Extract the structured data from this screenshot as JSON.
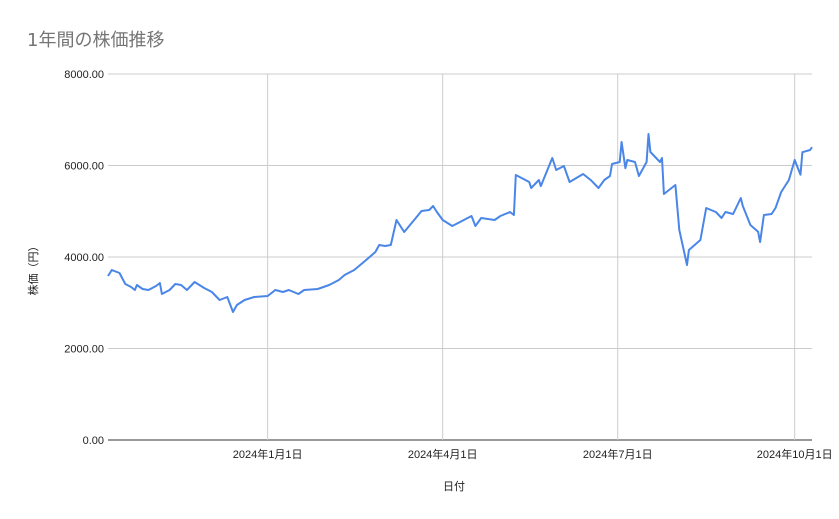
{
  "chart_data": {
    "type": "line",
    "title": "1年間の株価推移",
    "xlabel": "日付",
    "ylabel": "株価（円）",
    "ylim": [
      0,
      8000
    ],
    "xlim": [
      "2023-10-10",
      "2024-10-10"
    ],
    "yticks": [
      "0.00",
      "2000.00",
      "4000.00",
      "6000.00",
      "8000.00"
    ],
    "xticks": [
      {
        "date": "2024-01-01",
        "label": "2024年1月1日"
      },
      {
        "date": "2024-04-01",
        "label": "2024年4月1日"
      },
      {
        "date": "2024-07-01",
        "label": "2024年7月1日"
      },
      {
        "date": "2024-10-01",
        "label": "2024年10月1日"
      }
    ],
    "grid": true,
    "line_color": "#4a86e8",
    "x": [
      "2023-10-10",
      "2023-10-12",
      "2023-10-16",
      "2023-10-19",
      "2023-10-22",
      "2023-10-24",
      "2023-10-25",
      "2023-10-28",
      "2023-10-31",
      "2023-11-04",
      "2023-11-06",
      "2023-11-07",
      "2023-11-11",
      "2023-11-14",
      "2023-11-17",
      "2023-11-20",
      "2023-11-24",
      "2023-11-29",
      "2023-12-03",
      "2023-12-07",
      "2023-12-11",
      "2023-12-14",
      "2023-12-16",
      "2023-12-20",
      "2023-12-25",
      "2024-01-01",
      "2024-01-05",
      "2024-01-09",
      "2024-01-12",
      "2024-01-17",
      "2024-01-20",
      "2024-01-27",
      "2024-02-02",
      "2024-02-07",
      "2024-02-10",
      "2024-02-15",
      "2024-02-20",
      "2024-02-26",
      "2024-02-28",
      "2024-03-02",
      "2024-03-05",
      "2024-03-08",
      "2024-03-12",
      "2024-03-18",
      "2024-03-21",
      "2024-03-25",
      "2024-03-27",
      "2024-03-29",
      "2024-04-01",
      "2024-04-06",
      "2024-04-10",
      "2024-04-16",
      "2024-04-18",
      "2024-04-21",
      "2024-04-28",
      "2024-05-01",
      "2024-05-06",
      "2024-05-08",
      "2024-05-09",
      "2024-05-16",
      "2024-05-17",
      "2024-05-21",
      "2024-05-22",
      "2024-05-28",
      "2024-05-30",
      "2024-06-03",
      "2024-06-06",
      "2024-06-13",
      "2024-06-17",
      "2024-06-21",
      "2024-06-24",
      "2024-06-27",
      "2024-06-28",
      "2024-07-02",
      "2024-07-03",
      "2024-07-05",
      "2024-07-06",
      "2024-07-10",
      "2024-07-12",
      "2024-07-16",
      "2024-07-17",
      "2024-07-18",
      "2024-07-23",
      "2024-07-24",
      "2024-07-25",
      "2024-07-31",
      "2024-08-02",
      "2024-08-06",
      "2024-08-07",
      "2024-08-13",
      "2024-08-16",
      "2024-08-21",
      "2024-08-24",
      "2024-08-26",
      "2024-08-30",
      "2024-09-03",
      "2024-09-04",
      "2024-09-08",
      "2024-09-12",
      "2024-09-13",
      "2024-09-15",
      "2024-09-19",
      "2024-09-21",
      "2024-09-24",
      "2024-09-28",
      "2024-10-01",
      "2024-10-04",
      "2024-10-05",
      "2024-10-09",
      "2024-10-10"
    ],
    "values": [
      3585,
      3716,
      3650,
      3410,
      3344,
      3279,
      3388,
      3300,
      3279,
      3366,
      3432,
      3191,
      3279,
      3410,
      3388,
      3279,
      3454,
      3322,
      3235,
      3060,
      3126,
      2798,
      2951,
      3060,
      3126,
      3148,
      3279,
      3235,
      3279,
      3191,
      3279,
      3300,
      3388,
      3497,
      3607,
      3716,
      3891,
      4109,
      4262,
      4240,
      4262,
      4809,
      4546,
      4852,
      5005,
      5027,
      5115,
      4984,
      4809,
      4678,
      4765,
      4896,
      4678,
      4852,
      4809,
      4896,
      4984,
      4918,
      5792,
      5639,
      5508,
      5683,
      5550,
      6164,
      5902,
      5989,
      5640,
      5814,
      5680,
      5508,
      5683,
      5770,
      6033,
      6077,
      6514,
      5940,
      6120,
      6077,
      5770,
      6077,
      6689,
      6295,
      6077,
      6164,
      5377,
      5574,
      4590,
      3825,
      4153,
      4372,
      5071,
      4984,
      4852,
      4984,
      4940,
      5290,
      5115,
      4699,
      4550,
      4328,
      4918,
      4940,
      5071,
      5421,
      5683,
      6120,
      5800,
      6290,
      6339,
      6400
    ]
  }
}
